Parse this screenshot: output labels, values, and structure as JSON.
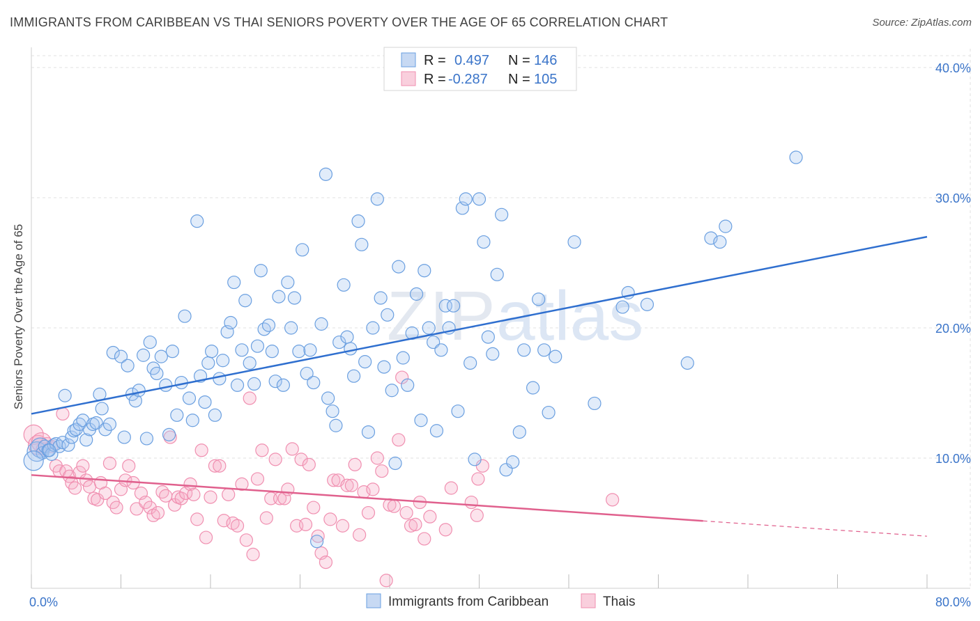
{
  "title": "IMMIGRANTS FROM CARIBBEAN VS THAI SENIORS POVERTY OVER THE AGE OF 65 CORRELATION CHART",
  "source": "Source: ZipAtlas.com",
  "watermark": {
    "zip": "ZIP",
    "atlas": "atlas"
  },
  "colors": {
    "blue": "#6a9fe0",
    "blue_line": "#2f6fcf",
    "pink": "#f08fb0",
    "pink_line": "#e0608d",
    "axis_label": "#3a74c9"
  },
  "legend": {
    "rows": [
      {
        "r_label": "R =",
        "r_value": "0.497",
        "n_label": "N =",
        "n_value": "146"
      },
      {
        "r_label": "R =",
        "r_value": "-0.287",
        "n_label": "N =",
        "n_value": "105"
      }
    ]
  },
  "bottom_legend": [
    "Immigrants from Caribbean",
    "Thais"
  ],
  "chart_data": {
    "type": "scatter",
    "title": "IMMIGRANTS FROM CARIBBEAN VS THAI SENIORS POVERTY OVER THE AGE OF 65 CORRELATION CHART",
    "xlabel": "",
    "ylabel": "Seniors Poverty Over the Age of 65",
    "xlim": [
      0,
      80
    ],
    "ylim": [
      0,
      40
    ],
    "x_tick_labels": [
      "0.0%",
      "80.0%"
    ],
    "y_ticks": [
      10,
      20,
      30,
      40
    ],
    "y_tick_labels": [
      "10.0%",
      "20.0%",
      "30.0%",
      "40.0%"
    ],
    "grid": true,
    "legend_position": "top-center",
    "series": [
      {
        "name": "Immigrants from Caribbean",
        "R": 0.497,
        "N": 146,
        "trend": {
          "x": [
            0,
            80
          ],
          "y": [
            13.4,
            27.0
          ]
        },
        "points": [
          [
            0.5,
            10.5
          ],
          [
            0.8,
            10.8
          ],
          [
            1.0,
            10.4
          ],
          [
            1.2,
            10.9
          ],
          [
            1.5,
            10.6
          ],
          [
            1.8,
            10.3
          ],
          [
            2.0,
            11.0
          ],
          [
            2.2,
            11.1
          ],
          [
            2.5,
            10.9
          ],
          [
            2.8,
            11.2
          ],
          [
            3.0,
            14.8
          ],
          [
            3.3,
            11.0
          ],
          [
            3.6,
            11.6
          ],
          [
            3.8,
            12.1
          ],
          [
            4.0,
            12.2
          ],
          [
            4.3,
            12.6
          ],
          [
            4.6,
            12.9
          ],
          [
            4.9,
            11.4
          ],
          [
            5.2,
            12.2
          ],
          [
            5.5,
            12.6
          ],
          [
            5.8,
            12.7
          ],
          [
            6.1,
            14.9
          ],
          [
            6.3,
            13.8
          ],
          [
            6.6,
            12.2
          ],
          [
            7.0,
            12.6
          ],
          [
            7.3,
            18.1
          ],
          [
            8.0,
            17.8
          ],
          [
            8.3,
            11.6
          ],
          [
            8.6,
            17.1
          ],
          [
            9.0,
            14.9
          ],
          [
            9.3,
            14.4
          ],
          [
            9.6,
            15.2
          ],
          [
            10.0,
            17.9
          ],
          [
            10.3,
            11.5
          ],
          [
            10.6,
            18.9
          ],
          [
            10.9,
            16.9
          ],
          [
            11.2,
            16.5
          ],
          [
            11.6,
            17.8
          ],
          [
            12.0,
            15.6
          ],
          [
            12.3,
            11.8
          ],
          [
            12.6,
            18.2
          ],
          [
            13.0,
            13.3
          ],
          [
            13.4,
            15.8
          ],
          [
            13.7,
            20.9
          ],
          [
            14.1,
            14.6
          ],
          [
            14.4,
            12.9
          ],
          [
            14.8,
            28.2
          ],
          [
            15.1,
            16.3
          ],
          [
            15.5,
            14.3
          ],
          [
            15.8,
            17.3
          ],
          [
            16.1,
            18.2
          ],
          [
            16.4,
            13.3
          ],
          [
            16.8,
            16.1
          ],
          [
            17.1,
            17.5
          ],
          [
            17.5,
            19.7
          ],
          [
            17.8,
            20.4
          ],
          [
            18.1,
            23.5
          ],
          [
            18.4,
            15.6
          ],
          [
            18.8,
            18.3
          ],
          [
            19.1,
            22.1
          ],
          [
            19.5,
            17.3
          ],
          [
            19.9,
            15.7
          ],
          [
            20.2,
            18.6
          ],
          [
            20.5,
            24.4
          ],
          [
            20.8,
            19.9
          ],
          [
            21.2,
            20.2
          ],
          [
            21.5,
            18.2
          ],
          [
            21.8,
            15.9
          ],
          [
            22.1,
            22.4
          ],
          [
            22.5,
            15.6
          ],
          [
            22.9,
            23.5
          ],
          [
            23.2,
            20.0
          ],
          [
            23.5,
            22.3
          ],
          [
            23.9,
            18.2
          ],
          [
            24.2,
            26.0
          ],
          [
            24.6,
            16.5
          ],
          [
            24.9,
            18.3
          ],
          [
            25.2,
            15.8
          ],
          [
            25.5,
            3.6
          ],
          [
            25.9,
            20.3
          ],
          [
            26.3,
            31.8
          ],
          [
            26.5,
            14.6
          ],
          [
            26.9,
            13.6
          ],
          [
            27.2,
            12.5
          ],
          [
            27.5,
            18.9
          ],
          [
            27.9,
            23.3
          ],
          [
            28.2,
            19.3
          ],
          [
            28.5,
            18.4
          ],
          [
            28.8,
            16.3
          ],
          [
            29.2,
            28.2
          ],
          [
            29.5,
            26.4
          ],
          [
            29.8,
            17.4
          ],
          [
            30.1,
            12.0
          ],
          [
            30.5,
            20.0
          ],
          [
            30.9,
            29.9
          ],
          [
            31.2,
            22.3
          ],
          [
            31.5,
            17.0
          ],
          [
            31.8,
            21.0
          ],
          [
            32.2,
            15.2
          ],
          [
            32.5,
            9.6
          ],
          [
            32.8,
            24.7
          ],
          [
            33.2,
            17.7
          ],
          [
            33.6,
            15.6
          ],
          [
            34.0,
            19.6
          ],
          [
            34.4,
            22.6
          ],
          [
            34.8,
            12.9
          ],
          [
            35.1,
            24.4
          ],
          [
            35.5,
            20.0
          ],
          [
            35.9,
            18.9
          ],
          [
            36.2,
            12.1
          ],
          [
            36.6,
            18.3
          ],
          [
            37.0,
            21.7
          ],
          [
            37.3,
            20.0
          ],
          [
            37.7,
            21.7
          ],
          [
            38.1,
            13.6
          ],
          [
            38.5,
            29.2
          ],
          [
            38.8,
            29.9
          ],
          [
            39.2,
            17.3
          ],
          [
            39.6,
            9.9
          ],
          [
            40.0,
            29.9
          ],
          [
            40.4,
            26.6
          ],
          [
            40.8,
            19.3
          ],
          [
            41.2,
            18.0
          ],
          [
            41.6,
            24.1
          ],
          [
            42.0,
            28.7
          ],
          [
            42.4,
            9.1
          ],
          [
            43.0,
            9.7
          ],
          [
            43.6,
            12.0
          ],
          [
            44.0,
            18.3
          ],
          [
            44.8,
            15.4
          ],
          [
            45.3,
            22.2
          ],
          [
            45.8,
            18.3
          ],
          [
            46.2,
            13.5
          ],
          [
            46.8,
            17.8
          ],
          [
            48.5,
            26.6
          ],
          [
            50.3,
            14.2
          ],
          [
            52.8,
            21.6
          ],
          [
            53.3,
            22.7
          ],
          [
            55.0,
            21.8
          ],
          [
            58.6,
            17.3
          ],
          [
            60.7,
            26.9
          ],
          [
            61.5,
            26.6
          ],
          [
            62.0,
            27.8
          ],
          [
            68.3,
            33.1
          ],
          [
            0.2,
            9.8
          ],
          [
            1.6,
            10.6
          ]
        ]
      },
      {
        "name": "Thais",
        "R": -0.287,
        "N": 105,
        "trend": {
          "x": [
            0,
            80
          ],
          "y": [
            8.7,
            4.0
          ]
        },
        "trend_solid_to_x": 60,
        "points": [
          [
            0.2,
            11.8
          ],
          [
            0.6,
            11.0
          ],
          [
            1.0,
            10.7
          ],
          [
            1.4,
            11.1
          ],
          [
            1.8,
            10.9
          ],
          [
            2.2,
            9.4
          ],
          [
            2.5,
            9.0
          ],
          [
            2.8,
            13.4
          ],
          [
            3.1,
            9.0
          ],
          [
            3.4,
            8.6
          ],
          [
            3.6,
            8.1
          ],
          [
            3.9,
            7.7
          ],
          [
            4.3,
            8.9
          ],
          [
            4.6,
            9.4
          ],
          [
            4.9,
            8.3
          ],
          [
            5.2,
            7.8
          ],
          [
            5.6,
            6.9
          ],
          [
            5.9,
            6.8
          ],
          [
            6.2,
            8.1
          ],
          [
            6.6,
            7.3
          ],
          [
            7.0,
            9.6
          ],
          [
            7.3,
            6.6
          ],
          [
            7.6,
            6.2
          ],
          [
            8.0,
            7.6
          ],
          [
            8.4,
            8.3
          ],
          [
            8.7,
            9.4
          ],
          [
            9.1,
            8.1
          ],
          [
            9.4,
            6.1
          ],
          [
            9.8,
            7.3
          ],
          [
            10.2,
            6.6
          ],
          [
            10.6,
            6.2
          ],
          [
            10.9,
            5.6
          ],
          [
            11.3,
            5.8
          ],
          [
            11.7,
            7.4
          ],
          [
            12.0,
            7.1
          ],
          [
            12.4,
            11.6
          ],
          [
            12.8,
            6.4
          ],
          [
            13.1,
            7.0
          ],
          [
            13.4,
            6.9
          ],
          [
            13.8,
            7.3
          ],
          [
            14.2,
            8.0
          ],
          [
            14.5,
            7.2
          ],
          [
            14.8,
            5.3
          ],
          [
            15.2,
            10.6
          ],
          [
            15.6,
            3.9
          ],
          [
            16.0,
            7.0
          ],
          [
            16.4,
            9.4
          ],
          [
            16.8,
            9.4
          ],
          [
            17.2,
            5.2
          ],
          [
            17.6,
            7.2
          ],
          [
            18.0,
            5.0
          ],
          [
            18.4,
            4.8
          ],
          [
            18.8,
            8.0
          ],
          [
            19.2,
            3.7
          ],
          [
            19.5,
            14.6
          ],
          [
            19.8,
            2.6
          ],
          [
            20.2,
            8.4
          ],
          [
            20.6,
            10.6
          ],
          [
            21.0,
            5.4
          ],
          [
            21.4,
            6.9
          ],
          [
            21.8,
            9.9
          ],
          [
            22.2,
            6.9
          ],
          [
            22.6,
            6.9
          ],
          [
            22.9,
            7.6
          ],
          [
            23.3,
            10.7
          ],
          [
            23.7,
            4.8
          ],
          [
            24.1,
            9.9
          ],
          [
            24.5,
            4.9
          ],
          [
            24.8,
            9.5
          ],
          [
            25.2,
            6.2
          ],
          [
            25.6,
            4.0
          ],
          [
            25.9,
            2.7
          ],
          [
            26.3,
            2.0
          ],
          [
            26.7,
            5.3
          ],
          [
            27.0,
            8.3
          ],
          [
            27.4,
            8.3
          ],
          [
            27.8,
            4.8
          ],
          [
            28.2,
            7.9
          ],
          [
            28.6,
            7.9
          ],
          [
            28.9,
            9.5
          ],
          [
            29.3,
            4.1
          ],
          [
            29.7,
            7.4
          ],
          [
            30.1,
            5.8
          ],
          [
            30.5,
            7.6
          ],
          [
            30.9,
            10.0
          ],
          [
            31.3,
            9.0
          ],
          [
            31.7,
            0.6
          ],
          [
            32.0,
            6.4
          ],
          [
            32.4,
            6.3
          ],
          [
            32.8,
            11.4
          ],
          [
            33.1,
            16.2
          ],
          [
            33.5,
            5.8
          ],
          [
            33.9,
            4.8
          ],
          [
            34.3,
            4.9
          ],
          [
            34.7,
            6.6
          ],
          [
            35.1,
            3.8
          ],
          [
            35.6,
            5.5
          ],
          [
            37.0,
            4.5
          ],
          [
            37.5,
            7.7
          ],
          [
            39.3,
            6.6
          ],
          [
            39.8,
            5.6
          ],
          [
            39.9,
            8.4
          ],
          [
            40.3,
            9.4
          ],
          [
            51.9,
            6.8
          ],
          [
            0.9,
            11.2
          ]
        ]
      }
    ]
  }
}
